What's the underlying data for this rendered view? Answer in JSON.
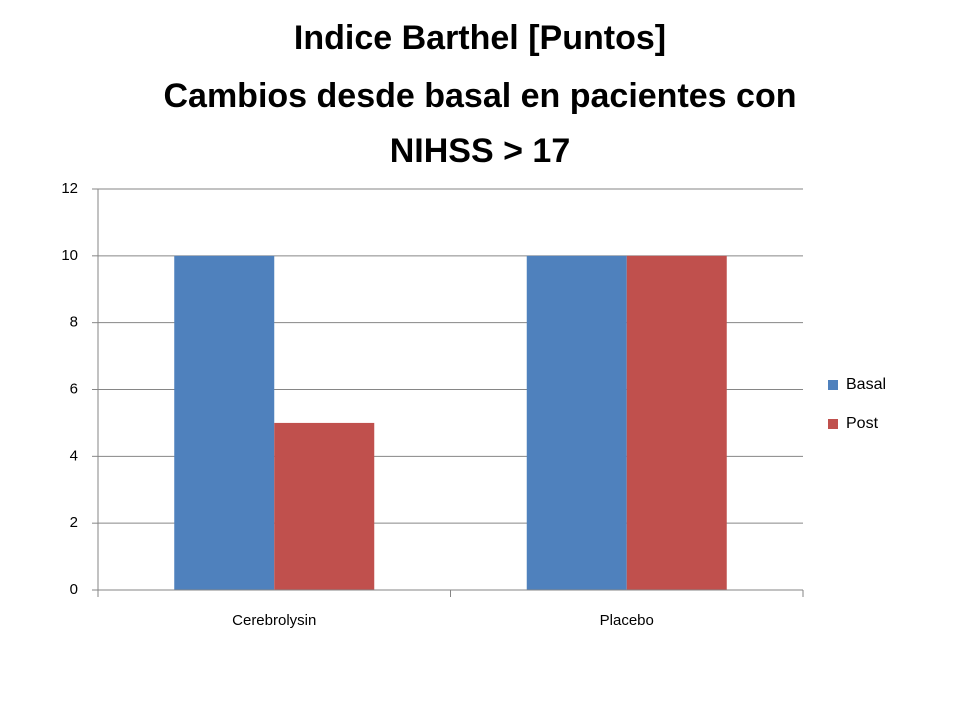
{
  "chart_data": {
    "type": "bar",
    "title": [
      "Indice Barthel [Puntos]",
      "Cambios desde basal en pacientes con",
      "NIHSS > 17"
    ],
    "categories": [
      "Cerebrolysin",
      "Placebo"
    ],
    "series": [
      {
        "name": "Basal",
        "color": "#4f81bd",
        "values": [
          10,
          10
        ]
      },
      {
        "name": "Post",
        "color": "#c0504d",
        "values": [
          5,
          10
        ]
      }
    ],
    "ylim": [
      0,
      12
    ],
    "yticks": [
      0,
      2,
      4,
      6,
      8,
      10,
      12
    ],
    "grid": true,
    "legend": "right"
  }
}
